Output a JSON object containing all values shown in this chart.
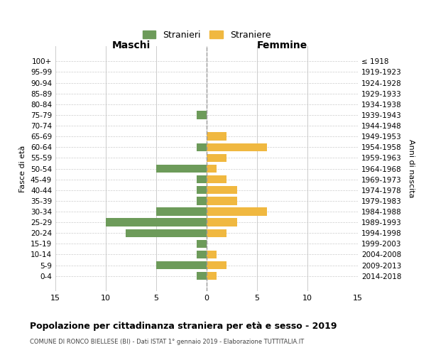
{
  "age_groups": [
    "100+",
    "95-99",
    "90-94",
    "85-89",
    "80-84",
    "75-79",
    "70-74",
    "65-69",
    "60-64",
    "55-59",
    "50-54",
    "45-49",
    "40-44",
    "35-39",
    "30-34",
    "25-29",
    "20-24",
    "15-19",
    "10-14",
    "5-9",
    "0-4"
  ],
  "birth_years": [
    "≤ 1918",
    "1919-1923",
    "1924-1928",
    "1929-1933",
    "1934-1938",
    "1939-1943",
    "1944-1948",
    "1949-1953",
    "1954-1958",
    "1959-1963",
    "1964-1968",
    "1969-1973",
    "1974-1978",
    "1979-1983",
    "1984-1988",
    "1989-1993",
    "1994-1998",
    "1999-2003",
    "2004-2008",
    "2009-2013",
    "2014-2018"
  ],
  "maschi": [
    0,
    0,
    0,
    0,
    0,
    1,
    0,
    0,
    1,
    0,
    5,
    1,
    1,
    1,
    5,
    10,
    8,
    1,
    1,
    5,
    1
  ],
  "femmine": [
    0,
    0,
    0,
    0,
    0,
    0,
    0,
    2,
    6,
    2,
    1,
    2,
    3,
    3,
    6,
    3,
    2,
    0,
    1,
    2,
    1
  ],
  "color_maschi": "#6d9b5a",
  "color_femmine": "#f0b840",
  "title": "Popolazione per cittadinanza straniera per età e sesso - 2019",
  "subtitle": "COMUNE DI RONCO BIELLESE (BI) - Dati ISTAT 1° gennaio 2019 - Elaborazione TUTTITALIA.IT",
  "xlabel_left": "Maschi",
  "xlabel_right": "Femmine",
  "ylabel_left": "Fasce di età",
  "ylabel_right": "Anni di nascita",
  "legend_maschi": "Stranieri",
  "legend_femmine": "Straniere",
  "xlim": 15,
  "background_color": "#ffffff",
  "grid_color": "#cccccc"
}
